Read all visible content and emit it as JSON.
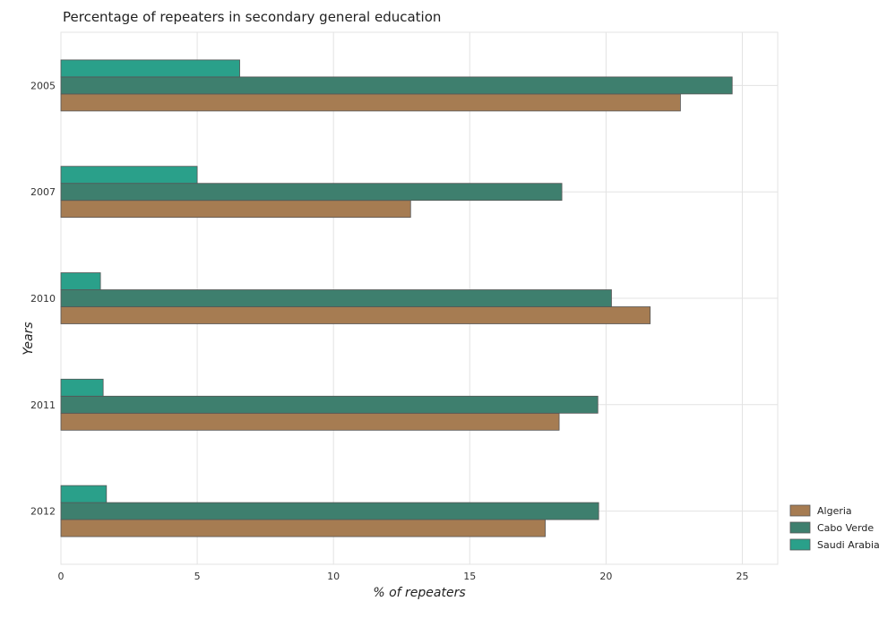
{
  "chart_data": {
    "type": "bar",
    "orientation": "horizontal",
    "title": "Percentage of repeaters in secondary general education",
    "xlabel": "% of repeaters",
    "ylabel": "Years",
    "categories": [
      "2005",
      "2007",
      "2010",
      "2011",
      "2012"
    ],
    "series": [
      {
        "name": "Algeria",
        "color": "#a67c52",
        "values": [
          22.73,
          12.83,
          21.62,
          18.28,
          17.77
        ]
      },
      {
        "name": "Cabo Verde",
        "color": "#3e7f6e",
        "values": [
          24.63,
          18.38,
          20.2,
          19.7,
          19.73
        ]
      },
      {
        "name": "Saudi Arabia",
        "color": "#2aa08a",
        "values": [
          6.56,
          5.0,
          1.45,
          1.55,
          1.67
        ]
      }
    ],
    "xlim": [
      0,
      26.3
    ],
    "xticks": [
      0,
      5,
      10,
      15,
      20,
      25
    ],
    "grid": true,
    "legend_position": "bottom-right"
  }
}
